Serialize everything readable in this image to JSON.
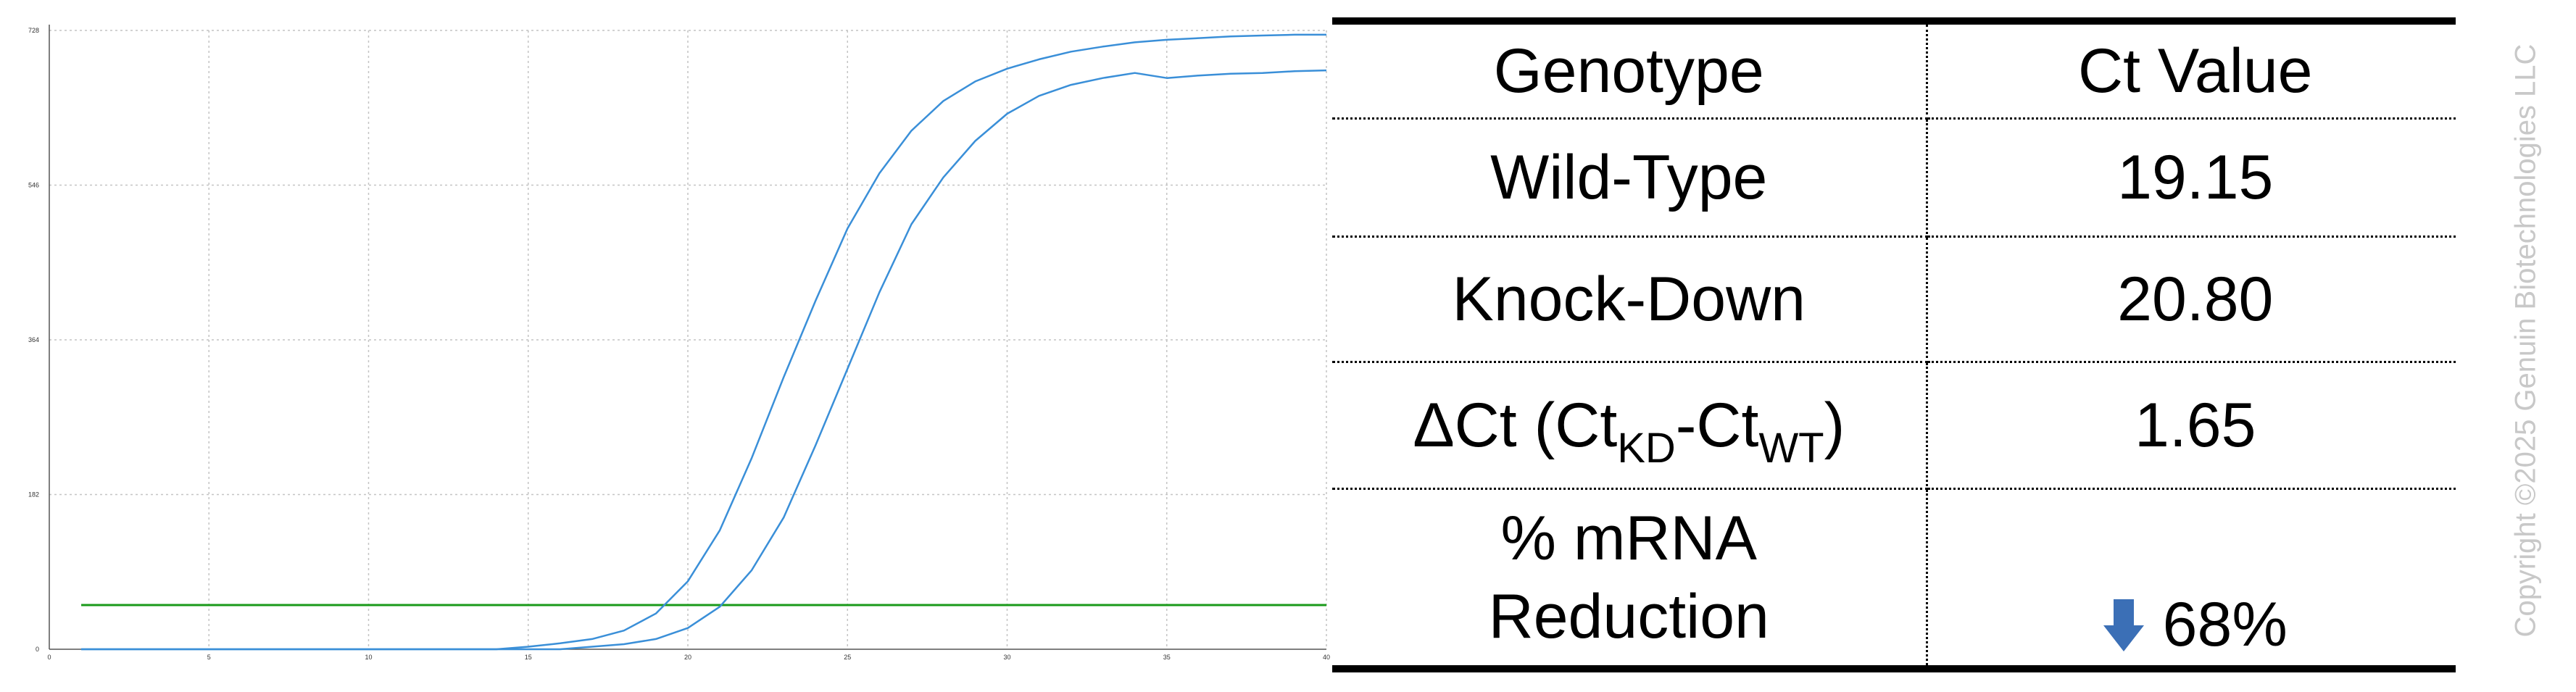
{
  "chart_data": {
    "type": "line",
    "title": "",
    "xlabel": "",
    "ylabel": "",
    "xlim": [
      0,
      40
    ],
    "ylim": [
      0,
      728
    ],
    "x_ticks": [
      0,
      5,
      10,
      15,
      20,
      25,
      30,
      35,
      40
    ],
    "y_ticks": [
      0,
      182,
      364,
      546,
      728
    ],
    "x_tick_labels": [
      "0",
      "5",
      "10",
      "15",
      "20",
      "25",
      "30",
      "35",
      "40"
    ],
    "y_tick_labels": [
      "0",
      "182",
      "364",
      "546",
      "728"
    ],
    "grid": true,
    "series": [
      {
        "color": "#3a8fd8",
        "x": [
          1,
          14,
          15,
          16,
          17,
          18,
          19,
          20,
          21,
          22,
          23,
          24,
          25,
          26,
          27,
          28,
          29,
          30,
          31,
          32,
          33,
          34,
          35,
          36,
          37,
          38,
          39,
          40
        ],
        "y": [
          0,
          0,
          3,
          7,
          12,
          22,
          42,
          80,
          140,
          225,
          320,
          410,
          495,
          560,
          610,
          645,
          668,
          683,
          694,
          703,
          709,
          714,
          717,
          719,
          721,
          722,
          723,
          723
        ]
      },
      {
        "color": "#3a8fd8",
        "x": [
          1,
          16,
          17,
          18,
          19,
          20,
          21,
          22,
          23,
          24,
          25,
          26,
          27,
          28,
          29,
          30,
          31,
          32,
          33,
          34,
          35,
          36,
          37,
          38,
          39,
          40
        ],
        "y": [
          0,
          0,
          3,
          6,
          12,
          25,
          50,
          93,
          155,
          240,
          330,
          420,
          500,
          555,
          598,
          630,
          651,
          664,
          672,
          678,
          672,
          675,
          677,
          678,
          680,
          681
        ]
      }
    ],
    "threshold": {
      "y": 52,
      "color": "#1a9a1a"
    }
  },
  "table": {
    "headers": [
      "Genotype",
      "Ct Value"
    ],
    "rows": [
      {
        "genotype": "Wild-Type",
        "value": "19.15"
      },
      {
        "genotype": "Knock-Down",
        "value": "20.80"
      },
      {
        "genotype_prefix": "ΔCt (Ct",
        "sub_kd": "KD",
        "mid": "-Ct",
        "sub_wt": "WT",
        "suffix": ")",
        "value": "1.65"
      },
      {
        "genotype_line1": "% mRNA",
        "genotype_line2": "Reduction",
        "arrow_icon": "down-arrow-icon",
        "arrow_color": "#3b6fb6",
        "value": "68%"
      }
    ]
  },
  "copyright": "Copyright ©2025 Genuin Biotechnologies LLC"
}
